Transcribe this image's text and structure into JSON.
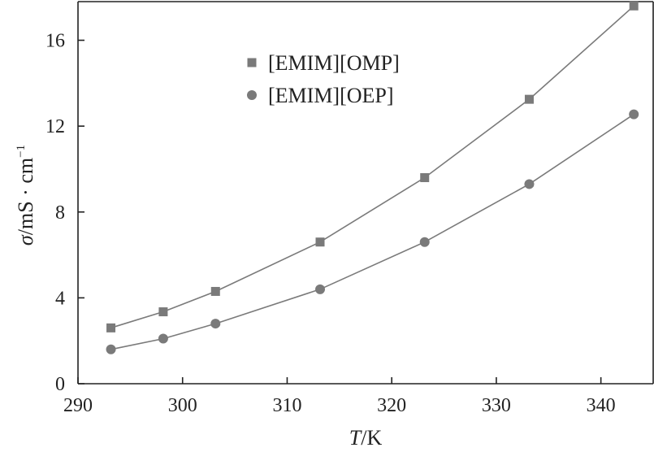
{
  "chart_data": {
    "type": "line",
    "xlabel": {
      "symbol": "T",
      "unit": "/K"
    },
    "ylabel": {
      "symbol": "σ",
      "unit": "/mS · cm",
      "exponent": "−1"
    },
    "xlim": [
      290,
      345
    ],
    "ylim": [
      0,
      17.8
    ],
    "xticks": [
      290,
      300,
      310,
      320,
      330,
      340
    ],
    "yticks": [
      0,
      4,
      8,
      12,
      16
    ],
    "grid": false,
    "legend_position": "top-center",
    "series": [
      {
        "name": "[EMIM][OMP]",
        "marker": "square",
        "color": "#7a7a7a",
        "x": [
          293.15,
          298.15,
          303.15,
          313.15,
          323.15,
          333.15,
          343.15
        ],
        "y": [
          2.6,
          3.35,
          4.3,
          6.6,
          9.6,
          13.25,
          17.6
        ]
      },
      {
        "name": "[EMIM][OEP]",
        "marker": "circle",
        "color": "#7a7a7a",
        "x": [
          293.15,
          298.15,
          303.15,
          313.15,
          323.15,
          333.15,
          343.15
        ],
        "y": [
          1.6,
          2.1,
          2.8,
          4.4,
          6.6,
          9.3,
          12.55
        ]
      }
    ]
  }
}
